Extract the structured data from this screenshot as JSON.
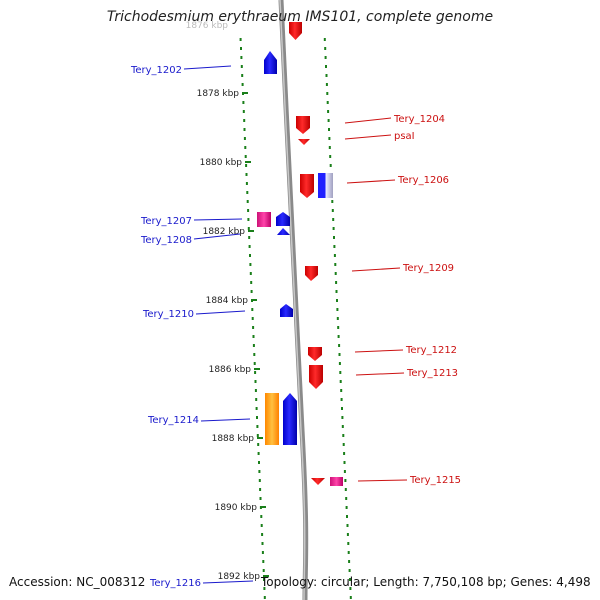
{
  "title": "Trichodesmium erythraeum IMS101, complete genome",
  "faded_label": "1876 kbp",
  "footer": {
    "accession": "Accession: NC_008312",
    "topology": "Topology: circular; Length: 7,750,108 bp; Genes: 4,498"
  },
  "colors": {
    "axis": "#8a8a8a",
    "dots": "#1a7f1a",
    "left_label": "#1a1acc",
    "right_label": "#cc1111",
    "blue": "#1a1aff",
    "red": "#ff1a1a",
    "magenta": "#ee2288",
    "orange": "#ff9a00"
  },
  "ruler": [
    {
      "kbp": 1878,
      "label": "1878 kbp"
    },
    {
      "kbp": 1880,
      "label": "1880 kbp"
    },
    {
      "kbp": 1882,
      "label": "1882 kbp"
    },
    {
      "kbp": 1884,
      "label": "1884 kbp"
    },
    {
      "kbp": 1886,
      "label": "1886 kbp"
    },
    {
      "kbp": 1888,
      "label": "1888 kbp"
    },
    {
      "kbp": 1890,
      "label": "1890 kbp"
    },
    {
      "kbp": 1892,
      "label": "1892 kbp"
    }
  ],
  "gene_labels": [
    {
      "name": "Tery_1202",
      "side": "left"
    },
    {
      "name": "Tery_1204",
      "side": "right"
    },
    {
      "name": "psaI",
      "side": "right"
    },
    {
      "name": "Tery_1206",
      "side": "right"
    },
    {
      "name": "Tery_1207",
      "side": "left"
    },
    {
      "name": "Tery_1208",
      "side": "left"
    },
    {
      "name": "Tery_1209",
      "side": "right"
    },
    {
      "name": "Tery_1210",
      "side": "left"
    },
    {
      "name": "Tery_1212",
      "side": "right"
    },
    {
      "name": "Tery_1213",
      "side": "right"
    },
    {
      "name": "Tery_1214",
      "side": "left"
    },
    {
      "name": "Tery_1215",
      "side": "right"
    },
    {
      "name": "Tery_1216",
      "side": "left"
    }
  ]
}
